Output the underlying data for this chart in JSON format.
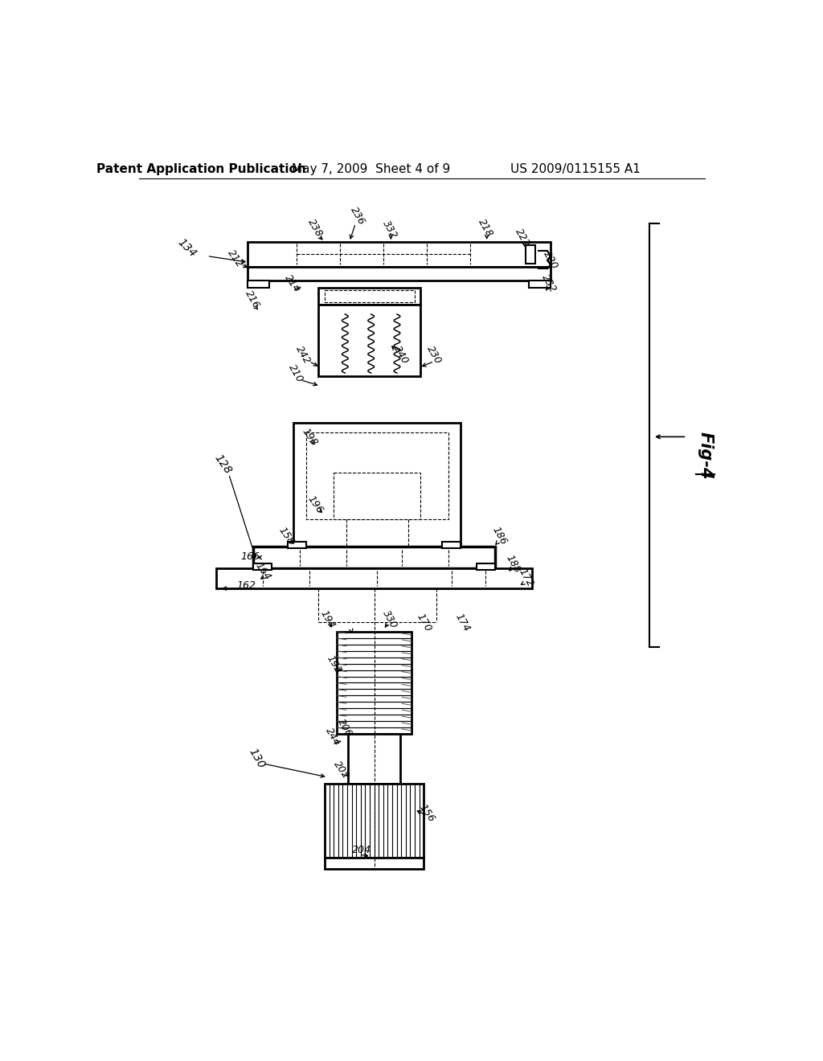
{
  "background_color": "#ffffff",
  "header_left": "Patent Application Publication",
  "header_center": "May 7, 2009  Sheet 4 of 9",
  "header_right": "US 2009/0115155 A1"
}
